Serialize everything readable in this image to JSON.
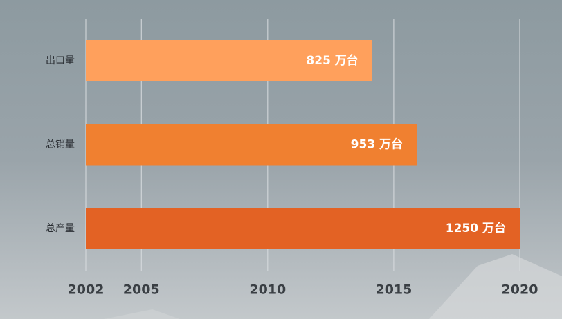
{
  "chart_data": {
    "type": "hbar",
    "categories": [
      "出口量",
      "总销量",
      "总产量"
    ],
    "values": [
      825,
      953,
      1250
    ],
    "value_labels": [
      "825 万台",
      "953 万台",
      "1250 万台"
    ],
    "colors": [
      "#ffa05c",
      "#f08030",
      "#e36224"
    ],
    "xlim": [
      0,
      1250
    ],
    "xticks": [
      {
        "value": 0,
        "label": "2002"
      },
      {
        "value": 160,
        "label": "2005"
      },
      {
        "value": 524,
        "label": "2010"
      },
      {
        "value": 887,
        "label": "2015"
      },
      {
        "value": 1250,
        "label": "2020"
      }
    ],
    "grid": true
  }
}
